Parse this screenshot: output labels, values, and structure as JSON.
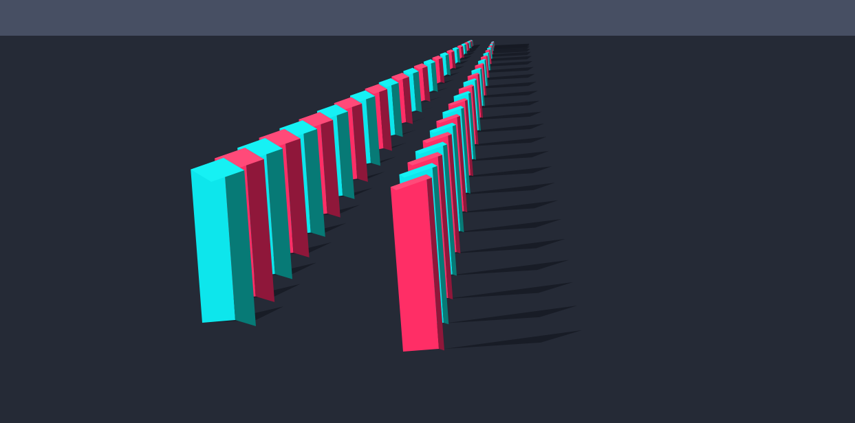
{
  "scene": {
    "type": "3d-domino-rows",
    "sky_color": "#474f63",
    "ground_color": "#252a36",
    "shadow_color": "#161a23",
    "block_palette": [
      {
        "name": "cyan",
        "front": "#0de6ec",
        "side": "#077a76",
        "top": "#16f1f4"
      },
      {
        "name": "pink",
        "front": "#ff2e66",
        "side": "#8f173a",
        "top": "#ff4a79"
      }
    ],
    "rows": [
      {
        "name": "left-row",
        "block_count": 26,
        "pattern_start": "cyan"
      },
      {
        "name": "right-row",
        "block_count": 26,
        "pattern_start": "pink"
      }
    ]
  }
}
